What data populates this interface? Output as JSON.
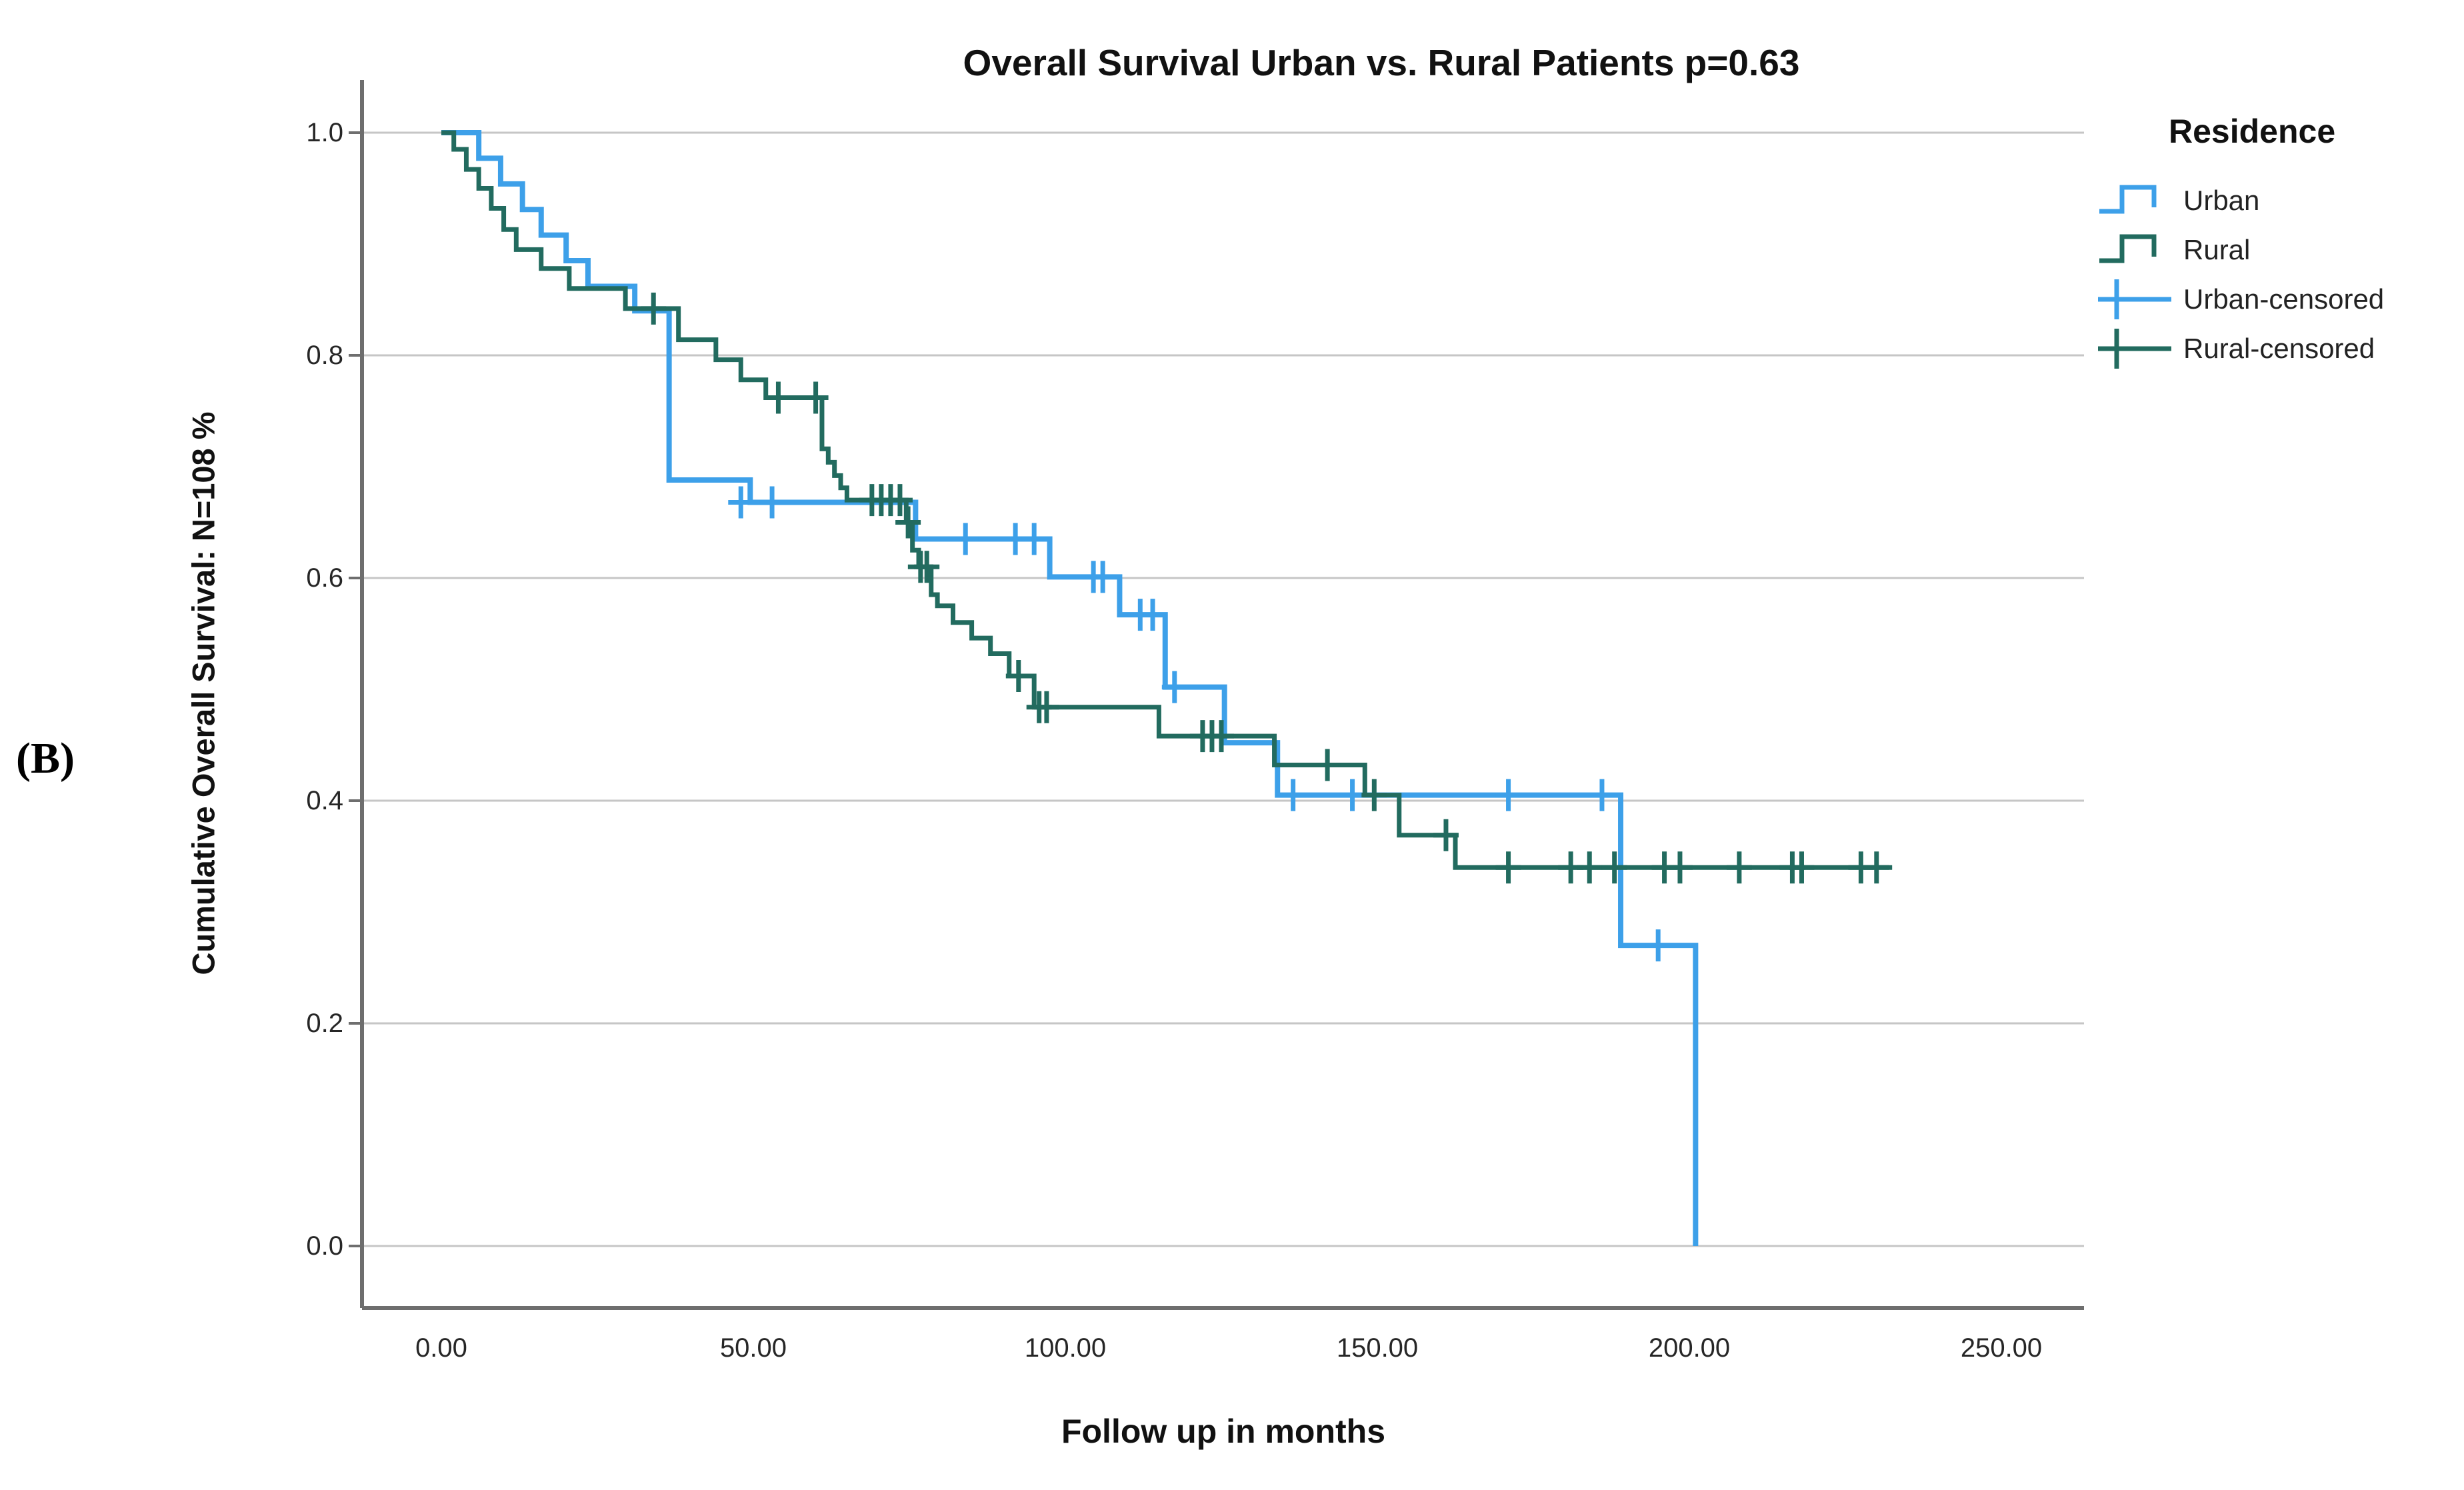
{
  "panel_label": "(B)",
  "legend": {
    "title": "Residence",
    "items": [
      {
        "key": "urban",
        "label": "Urban",
        "glyph": "step"
      },
      {
        "key": "rural",
        "label": "Rural",
        "glyph": "step"
      },
      {
        "key": "urban",
        "label": "Urban-censored",
        "glyph": "censor"
      },
      {
        "key": "rural",
        "label": "Rural-censored",
        "glyph": "censor"
      }
    ]
  },
  "colors": {
    "urban": "#3da0e9",
    "rural": "#226b5f",
    "gridline": "#c6c6c6",
    "axis": "#6e6e6e",
    "tick_text": "#262626"
  },
  "chart_data": {
    "type": "line",
    "subtype": "kaplan-meier-step",
    "title": "Overall Survival Urban vs. Rural Patients p=0.63",
    "p_value_in_title": "p=0.63",
    "xlabel": "Follow up in months",
    "ylabel": "Cumulative Overall Survival: N=108 %",
    "x_ticks": [
      {
        "value": 0,
        "label": "0.00"
      },
      {
        "value": 50,
        "label": "50.00"
      },
      {
        "value": 100,
        "label": "100.00"
      },
      {
        "value": 150,
        "label": "150.00"
      },
      {
        "value": 200,
        "label": "200.00"
      },
      {
        "value": 250,
        "label": "250.00"
      }
    ],
    "y_ticks": [
      {
        "value": 0.0,
        "label": "0.0"
      },
      {
        "value": 0.2,
        "label": "0.2"
      },
      {
        "value": 0.4,
        "label": "0.4"
      },
      {
        "value": 0.6,
        "label": "0.6"
      },
      {
        "value": 0.8,
        "label": "0.8"
      },
      {
        "value": 1.0,
        "label": "1.0"
      }
    ],
    "xlim": [
      -13,
      263
    ],
    "ylim": [
      -0.056,
      1.036
    ],
    "grid": "horizontal-only",
    "legend_position": "right",
    "series": [
      {
        "name": "Urban",
        "color_key": "urban",
        "start": [
          0,
          1.0
        ],
        "end_time": 201,
        "steps": [
          [
            6,
            0.977
          ],
          [
            9.5,
            0.954
          ],
          [
            13,
            0.931
          ],
          [
            16,
            0.908
          ],
          [
            20,
            0.885
          ],
          [
            23.5,
            0.862
          ],
          [
            31,
            0.84
          ],
          [
            36.5,
            0.688
          ],
          [
            49.5,
            0.668
          ],
          [
            76,
            0.635
          ],
          [
            97.5,
            0.601
          ],
          [
            108.7,
            0.567
          ],
          [
            116,
            0.502
          ],
          [
            125.5,
            0.452
          ],
          [
            134,
            0.405
          ],
          [
            189,
            0.27
          ],
          [
            201,
            0.0
          ]
        ],
        "censored": [
          [
            48,
            0.668
          ],
          [
            53,
            0.668
          ],
          [
            84,
            0.635
          ],
          [
            92,
            0.635
          ],
          [
            95,
            0.635
          ],
          [
            104.5,
            0.601
          ],
          [
            106,
            0.601
          ],
          [
            112,
            0.567
          ],
          [
            114,
            0.567
          ],
          [
            117.5,
            0.502
          ],
          [
            136.5,
            0.405
          ],
          [
            146,
            0.405
          ],
          [
            171,
            0.405
          ],
          [
            186,
            0.405
          ],
          [
            195,
            0.27
          ]
        ]
      },
      {
        "name": "Rural",
        "color_key": "rural",
        "start": [
          0,
          1.0
        ],
        "end_time": 232.5,
        "steps": [
          [
            2,
            0.985
          ],
          [
            4,
            0.967
          ],
          [
            6,
            0.95
          ],
          [
            8,
            0.932
          ],
          [
            10,
            0.913
          ],
          [
            12,
            0.895
          ],
          [
            16,
            0.878
          ],
          [
            20.5,
            0.86
          ],
          [
            29.5,
            0.842
          ],
          [
            38,
            0.814
          ],
          [
            44,
            0.796
          ],
          [
            48,
            0.778
          ],
          [
            52,
            0.762
          ],
          [
            61,
            0.716
          ],
          [
            62,
            0.704
          ],
          [
            63,
            0.692
          ],
          [
            64,
            0.681
          ],
          [
            65,
            0.67
          ],
          [
            74.5,
            0.65
          ],
          [
            75.5,
            0.625
          ],
          [
            76.5,
            0.61
          ],
          [
            78.5,
            0.585
          ],
          [
            79.5,
            0.575
          ],
          [
            82,
            0.56
          ],
          [
            85,
            0.546
          ],
          [
            88,
            0.532
          ],
          [
            91,
            0.512
          ],
          [
            95,
            0.484
          ],
          [
            115,
            0.458
          ],
          [
            133.5,
            0.432
          ],
          [
            148,
            0.405
          ],
          [
            153.5,
            0.369
          ],
          [
            162.5,
            0.34
          ]
        ],
        "censored": [
          [
            34,
            0.842
          ],
          [
            54,
            0.762
          ],
          [
            60,
            0.762
          ],
          [
            69,
            0.67
          ],
          [
            70.5,
            0.67
          ],
          [
            72,
            0.67
          ],
          [
            73.5,
            0.67
          ],
          [
            74.8,
            0.65
          ],
          [
            76.8,
            0.61
          ],
          [
            77.8,
            0.61
          ],
          [
            92.5,
            0.512
          ],
          [
            95.8,
            0.484
          ],
          [
            97,
            0.484
          ],
          [
            122,
            0.458
          ],
          [
            123.5,
            0.458
          ],
          [
            125,
            0.458
          ],
          [
            142,
            0.432
          ],
          [
            149.5,
            0.405
          ],
          [
            161,
            0.369
          ],
          [
            171,
            0.34
          ],
          [
            181,
            0.34
          ],
          [
            184,
            0.34
          ],
          [
            188,
            0.34
          ],
          [
            196,
            0.34
          ],
          [
            198.5,
            0.34
          ],
          [
            208,
            0.34
          ],
          [
            216.5,
            0.34
          ],
          [
            218,
            0.34
          ],
          [
            227.5,
            0.34
          ],
          [
            230,
            0.34
          ]
        ]
      }
    ]
  }
}
